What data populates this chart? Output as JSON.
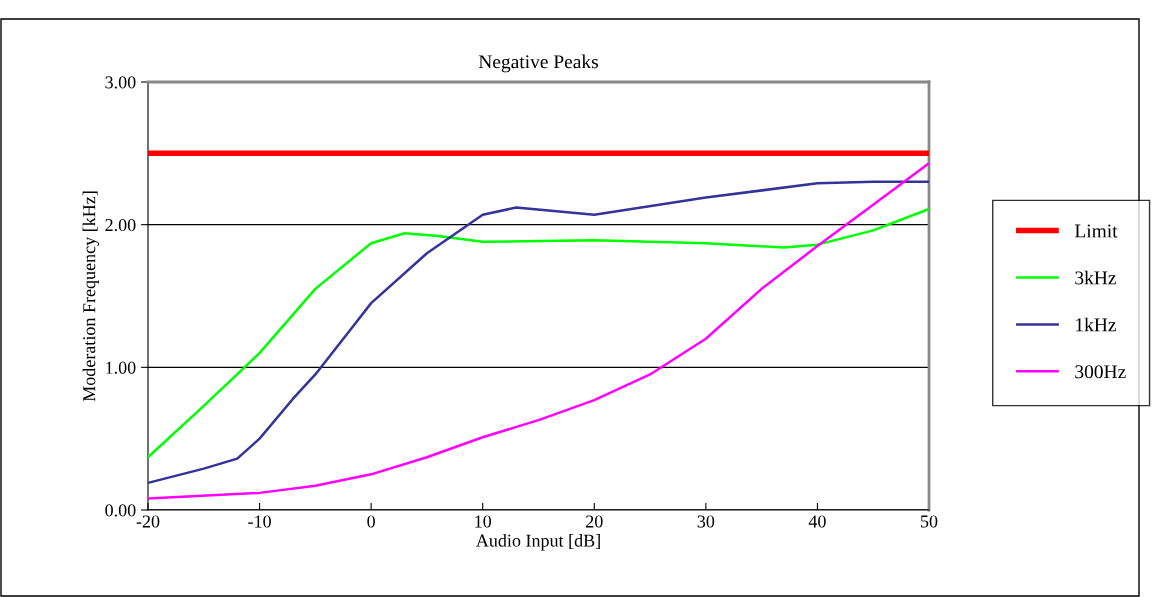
{
  "chart_data": {
    "type": "line",
    "title": "Negative Peaks",
    "xlabel": "Audio Input [dB]",
    "ylabel": "Moderation Frequency [kHz]",
    "xlim": [
      -20,
      50
    ],
    "xticks": [
      -20,
      -10,
      0,
      10,
      20,
      30,
      40,
      50
    ],
    "ylim": [
      0,
      3
    ],
    "yticks": [
      {
        "value": 0,
        "label": "0.00"
      },
      {
        "value": 1,
        "label": "1.00"
      },
      {
        "value": 2,
        "label": "2.00"
      },
      {
        "value": 3,
        "label": "3.00"
      }
    ],
    "grid": "y",
    "legend": "right",
    "marker": "none",
    "line_style": "solid",
    "series": [
      {
        "name": "Limit",
        "color": "#ff0000",
        "x": [
          -20,
          50
        ],
        "values": [
          2.5,
          2.5
        ]
      },
      {
        "name": "3kHz",
        "color": "#00ff00",
        "x": [
          -20,
          -15,
          -10,
          -5,
          0,
          3,
          6,
          10,
          20,
          30,
          37,
          40,
          45,
          50
        ],
        "values": [
          0.37,
          0.73,
          1.1,
          1.55,
          1.87,
          1.94,
          1.92,
          1.88,
          1.89,
          1.87,
          1.84,
          1.86,
          1.96,
          2.11
        ]
      },
      {
        "name": "1kHz",
        "color": "#333399",
        "x": [
          -20,
          -15,
          -12,
          -10,
          -7,
          -5,
          -2,
          0,
          5,
          10,
          13,
          20,
          30,
          40,
          45,
          50
        ],
        "values": [
          0.19,
          0.29,
          0.36,
          0.5,
          0.78,
          0.95,
          1.25,
          1.45,
          1.8,
          2.07,
          2.12,
          2.07,
          2.19,
          2.29,
          2.3,
          2.3
        ]
      },
      {
        "name": "300Hz",
        "color": "#ff00ff",
        "x": [
          -20,
          -10,
          -5,
          0,
          5,
          10,
          15,
          20,
          25,
          30,
          35,
          40,
          45,
          50
        ],
        "values": [
          0.08,
          0.12,
          0.17,
          0.25,
          0.37,
          0.51,
          0.63,
          0.77,
          0.95,
          1.2,
          1.55,
          1.85,
          2.14,
          2.43
        ]
      }
    ]
  }
}
